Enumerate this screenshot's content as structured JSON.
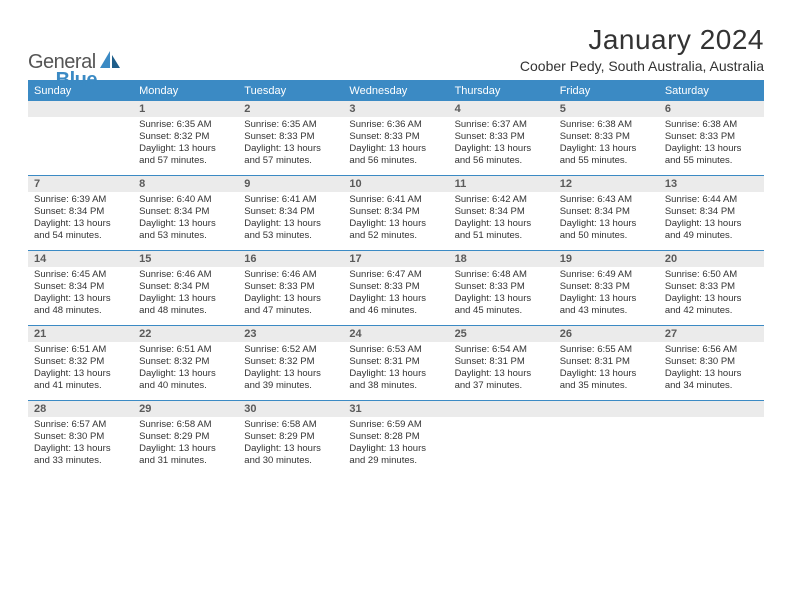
{
  "logo": {
    "part1": "General",
    "part2": "Blue"
  },
  "title": "January 2024",
  "location": "Coober Pedy, South Australia, Australia",
  "header_bg": "#3b8ac4",
  "header_fg": "#ffffff",
  "daynum_bg": "#ebebeb",
  "rule_color": "#3b8ac4",
  "weekdays": [
    "Sunday",
    "Monday",
    "Tuesday",
    "Wednesday",
    "Thursday",
    "Friday",
    "Saturday"
  ],
  "days": [
    {
      "n": "",
      "sunrise": "",
      "sunset": "",
      "daylight": ""
    },
    {
      "n": "1",
      "sunrise": "Sunrise: 6:35 AM",
      "sunset": "Sunset: 8:32 PM",
      "daylight": "Daylight: 13 hours and 57 minutes."
    },
    {
      "n": "2",
      "sunrise": "Sunrise: 6:35 AM",
      "sunset": "Sunset: 8:33 PM",
      "daylight": "Daylight: 13 hours and 57 minutes."
    },
    {
      "n": "3",
      "sunrise": "Sunrise: 6:36 AM",
      "sunset": "Sunset: 8:33 PM",
      "daylight": "Daylight: 13 hours and 56 minutes."
    },
    {
      "n": "4",
      "sunrise": "Sunrise: 6:37 AM",
      "sunset": "Sunset: 8:33 PM",
      "daylight": "Daylight: 13 hours and 56 minutes."
    },
    {
      "n": "5",
      "sunrise": "Sunrise: 6:38 AM",
      "sunset": "Sunset: 8:33 PM",
      "daylight": "Daylight: 13 hours and 55 minutes."
    },
    {
      "n": "6",
      "sunrise": "Sunrise: 6:38 AM",
      "sunset": "Sunset: 8:33 PM",
      "daylight": "Daylight: 13 hours and 55 minutes."
    },
    {
      "n": "7",
      "sunrise": "Sunrise: 6:39 AM",
      "sunset": "Sunset: 8:34 PM",
      "daylight": "Daylight: 13 hours and 54 minutes."
    },
    {
      "n": "8",
      "sunrise": "Sunrise: 6:40 AM",
      "sunset": "Sunset: 8:34 PM",
      "daylight": "Daylight: 13 hours and 53 minutes."
    },
    {
      "n": "9",
      "sunrise": "Sunrise: 6:41 AM",
      "sunset": "Sunset: 8:34 PM",
      "daylight": "Daylight: 13 hours and 53 minutes."
    },
    {
      "n": "10",
      "sunrise": "Sunrise: 6:41 AM",
      "sunset": "Sunset: 8:34 PM",
      "daylight": "Daylight: 13 hours and 52 minutes."
    },
    {
      "n": "11",
      "sunrise": "Sunrise: 6:42 AM",
      "sunset": "Sunset: 8:34 PM",
      "daylight": "Daylight: 13 hours and 51 minutes."
    },
    {
      "n": "12",
      "sunrise": "Sunrise: 6:43 AM",
      "sunset": "Sunset: 8:34 PM",
      "daylight": "Daylight: 13 hours and 50 minutes."
    },
    {
      "n": "13",
      "sunrise": "Sunrise: 6:44 AM",
      "sunset": "Sunset: 8:34 PM",
      "daylight": "Daylight: 13 hours and 49 minutes."
    },
    {
      "n": "14",
      "sunrise": "Sunrise: 6:45 AM",
      "sunset": "Sunset: 8:34 PM",
      "daylight": "Daylight: 13 hours and 48 minutes."
    },
    {
      "n": "15",
      "sunrise": "Sunrise: 6:46 AM",
      "sunset": "Sunset: 8:34 PM",
      "daylight": "Daylight: 13 hours and 48 minutes."
    },
    {
      "n": "16",
      "sunrise": "Sunrise: 6:46 AM",
      "sunset": "Sunset: 8:33 PM",
      "daylight": "Daylight: 13 hours and 47 minutes."
    },
    {
      "n": "17",
      "sunrise": "Sunrise: 6:47 AM",
      "sunset": "Sunset: 8:33 PM",
      "daylight": "Daylight: 13 hours and 46 minutes."
    },
    {
      "n": "18",
      "sunrise": "Sunrise: 6:48 AM",
      "sunset": "Sunset: 8:33 PM",
      "daylight": "Daylight: 13 hours and 45 minutes."
    },
    {
      "n": "19",
      "sunrise": "Sunrise: 6:49 AM",
      "sunset": "Sunset: 8:33 PM",
      "daylight": "Daylight: 13 hours and 43 minutes."
    },
    {
      "n": "20",
      "sunrise": "Sunrise: 6:50 AM",
      "sunset": "Sunset: 8:33 PM",
      "daylight": "Daylight: 13 hours and 42 minutes."
    },
    {
      "n": "21",
      "sunrise": "Sunrise: 6:51 AM",
      "sunset": "Sunset: 8:32 PM",
      "daylight": "Daylight: 13 hours and 41 minutes."
    },
    {
      "n": "22",
      "sunrise": "Sunrise: 6:51 AM",
      "sunset": "Sunset: 8:32 PM",
      "daylight": "Daylight: 13 hours and 40 minutes."
    },
    {
      "n": "23",
      "sunrise": "Sunrise: 6:52 AM",
      "sunset": "Sunset: 8:32 PM",
      "daylight": "Daylight: 13 hours and 39 minutes."
    },
    {
      "n": "24",
      "sunrise": "Sunrise: 6:53 AM",
      "sunset": "Sunset: 8:31 PM",
      "daylight": "Daylight: 13 hours and 38 minutes."
    },
    {
      "n": "25",
      "sunrise": "Sunrise: 6:54 AM",
      "sunset": "Sunset: 8:31 PM",
      "daylight": "Daylight: 13 hours and 37 minutes."
    },
    {
      "n": "26",
      "sunrise": "Sunrise: 6:55 AM",
      "sunset": "Sunset: 8:31 PM",
      "daylight": "Daylight: 13 hours and 35 minutes."
    },
    {
      "n": "27",
      "sunrise": "Sunrise: 6:56 AM",
      "sunset": "Sunset: 8:30 PM",
      "daylight": "Daylight: 13 hours and 34 minutes."
    },
    {
      "n": "28",
      "sunrise": "Sunrise: 6:57 AM",
      "sunset": "Sunset: 8:30 PM",
      "daylight": "Daylight: 13 hours and 33 minutes."
    },
    {
      "n": "29",
      "sunrise": "Sunrise: 6:58 AM",
      "sunset": "Sunset: 8:29 PM",
      "daylight": "Daylight: 13 hours and 31 minutes."
    },
    {
      "n": "30",
      "sunrise": "Sunrise: 6:58 AM",
      "sunset": "Sunset: 8:29 PM",
      "daylight": "Daylight: 13 hours and 30 minutes."
    },
    {
      "n": "31",
      "sunrise": "Sunrise: 6:59 AM",
      "sunset": "Sunset: 8:28 PM",
      "daylight": "Daylight: 13 hours and 29 minutes."
    },
    {
      "n": "",
      "sunrise": "",
      "sunset": "",
      "daylight": ""
    },
    {
      "n": "",
      "sunrise": "",
      "sunset": "",
      "daylight": ""
    },
    {
      "n": "",
      "sunrise": "",
      "sunset": "",
      "daylight": ""
    }
  ]
}
